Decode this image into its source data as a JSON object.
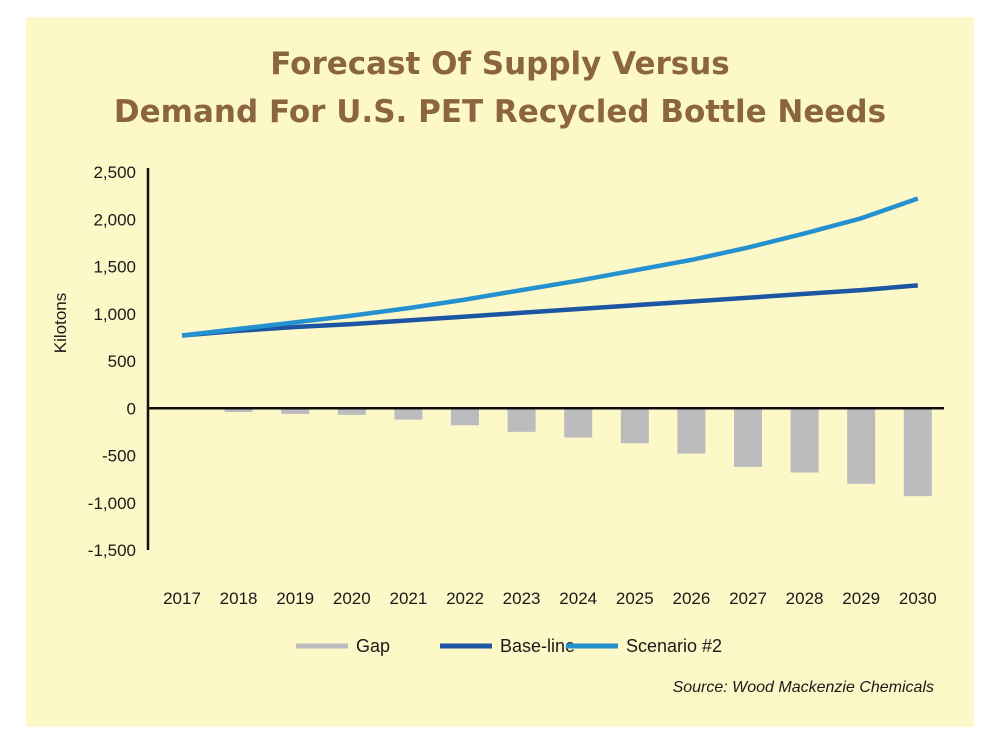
{
  "chart_data": {
    "type": "bar+line",
    "title_lines": [
      "Forecast Of Supply Versus",
      "Demand For U.S. PET Recycled Bottle Needs"
    ],
    "ylabel": "Kilotons",
    "xlabel": "",
    "ylim": [
      -1500,
      2500
    ],
    "yticks": [
      2500,
      2000,
      1500,
      1000,
      500,
      0,
      -500,
      -1000,
      -1500
    ],
    "ytick_labels": [
      "2,500",
      "2,000",
      "1,500",
      "1,000",
      "500",
      "0",
      "-500",
      "-1,000",
      "-1,500"
    ],
    "categories": [
      "2017",
      "2018",
      "2019",
      "2020",
      "2021",
      "2022",
      "2023",
      "2024",
      "2025",
      "2026",
      "2027",
      "2028",
      "2029",
      "2030"
    ],
    "series": [
      {
        "name": "Gap",
        "kind": "bar",
        "color": "#bcbcbe",
        "values": [
          0,
          -40,
          -60,
          -70,
          -120,
          -180,
          -250,
          -310,
          -370,
          -480,
          -620,
          -680,
          -800,
          -930
        ]
      },
      {
        "name": "Base-line",
        "kind": "line",
        "color": "#1c55a4",
        "values": [
          770,
          820,
          860,
          890,
          930,
          970,
          1010,
          1050,
          1090,
          1130,
          1170,
          1210,
          1250,
          1300
        ]
      },
      {
        "name": "Scenario #2",
        "kind": "line",
        "color": "#2591cf",
        "values": [
          770,
          840,
          910,
          980,
          1060,
          1150,
          1250,
          1350,
          1460,
          1570,
          1700,
          1850,
          2010,
          2220
        ]
      }
    ],
    "legend_position": "bottom",
    "grid": false,
    "source": "Source: Wood Mackenzie Chemicals"
  }
}
